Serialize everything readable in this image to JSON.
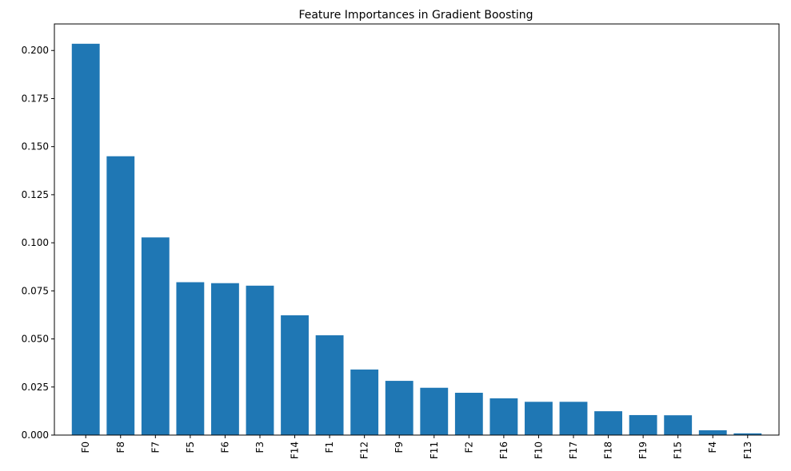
{
  "chart_data": {
    "type": "bar",
    "title": "Feature Importances in Gradient Boosting",
    "xlabel": "",
    "ylabel": "",
    "categories": [
      "F0",
      "F8",
      "F7",
      "F5",
      "F6",
      "F3",
      "F14",
      "F1",
      "F12",
      "F9",
      "F11",
      "F2",
      "F16",
      "F10",
      "F17",
      "F18",
      "F19",
      "F15",
      "F4",
      "F13"
    ],
    "values": [
      0.2035,
      0.145,
      0.1028,
      0.0795,
      0.079,
      0.0777,
      0.0623,
      0.0519,
      0.0341,
      0.0282,
      0.0246,
      0.022,
      0.0191,
      0.0173,
      0.0173,
      0.0124,
      0.0104,
      0.0103,
      0.0025,
      0.0009
    ],
    "ylim": [
      0,
      0.2138
    ],
    "yticks": [
      0.0,
      0.025,
      0.05,
      0.075,
      0.1,
      0.125,
      0.15,
      0.175,
      0.2
    ],
    "ytick_labels": [
      "0.000",
      "0.025",
      "0.050",
      "0.075",
      "0.100",
      "0.125",
      "0.150",
      "0.175",
      "0.200"
    ],
    "bar_color": "#1f77b4",
    "grid": false,
    "legend": "none"
  }
}
